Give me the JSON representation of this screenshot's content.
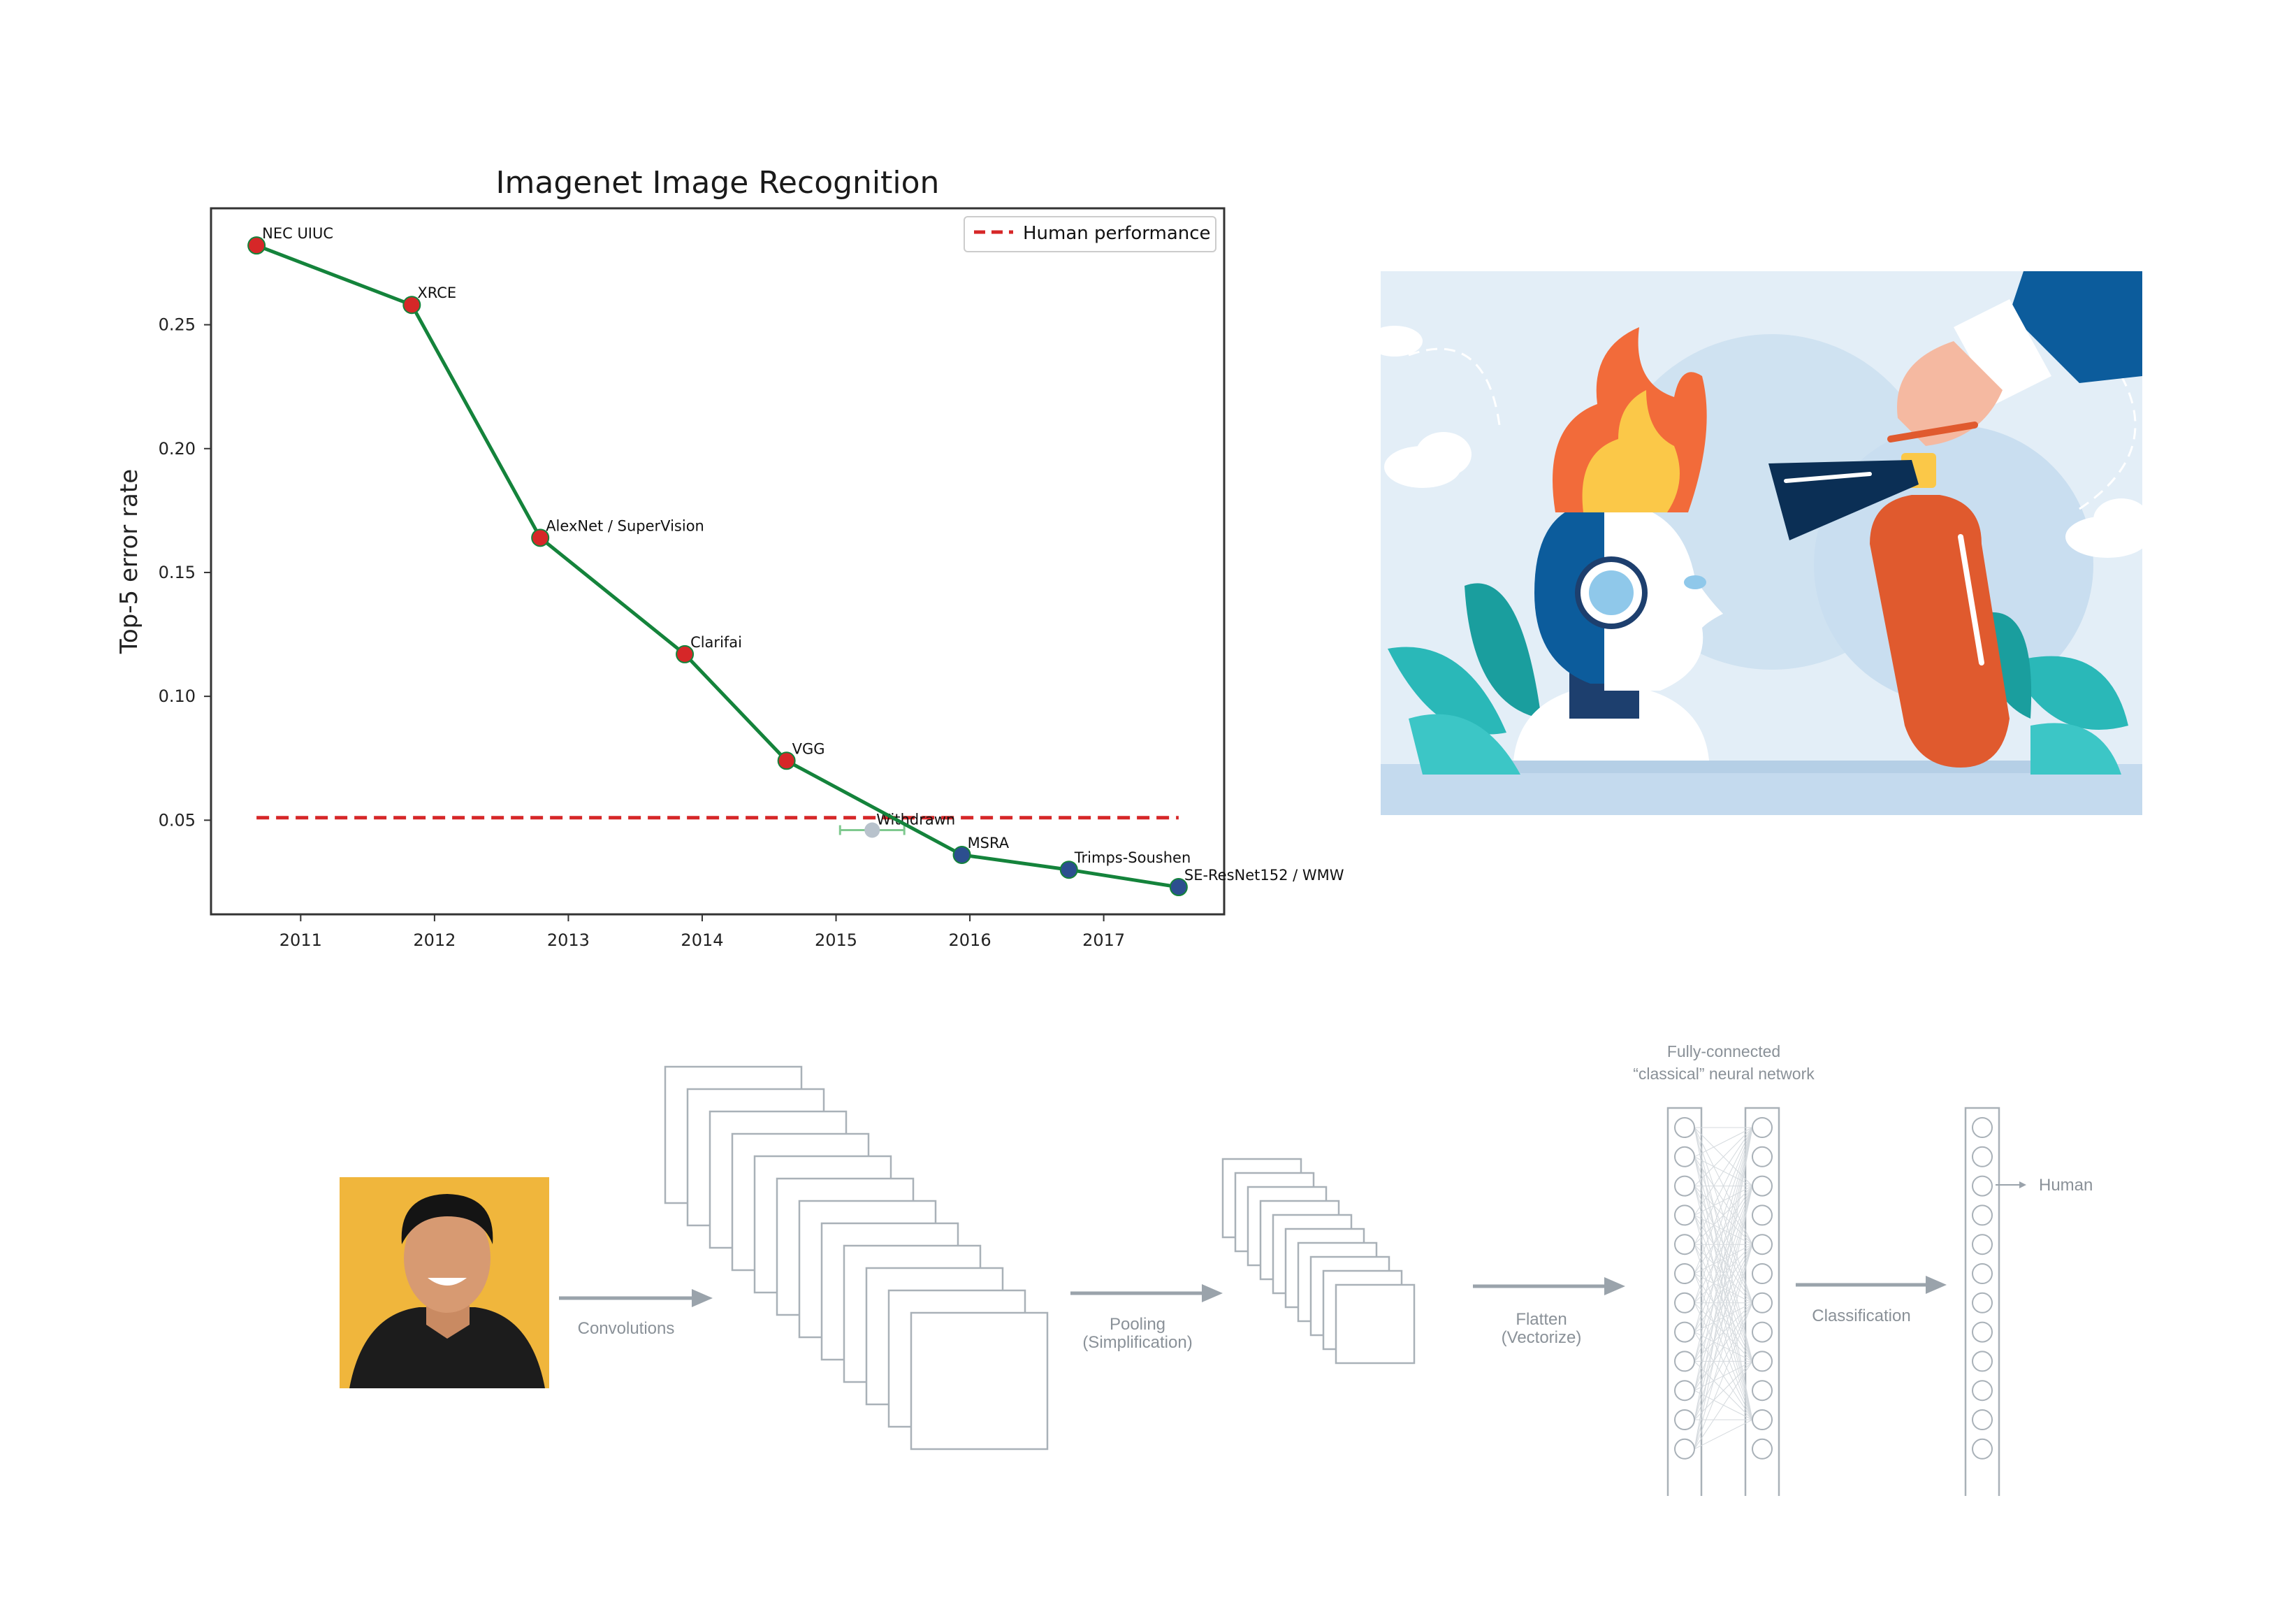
{
  "chart_data": {
    "type": "line",
    "title": "Imagenet Image Recognition",
    "ylabel": "Top-5 error rate",
    "xlabel": "",
    "xlim": [
      2010.33,
      2017.9
    ],
    "ylim": [
      0.012,
      0.297
    ],
    "xticks": [
      "2011",
      "2012",
      "2013",
      "2014",
      "2015",
      "2016",
      "2017"
    ],
    "yticks": [
      "0.05",
      "0.10",
      "0.15",
      "0.20",
      "0.25"
    ],
    "grid": false,
    "legend_position": "top-right",
    "series": [
      {
        "name": "",
        "points": [
          {
            "x": 2010.67,
            "y": 0.282,
            "label": "NEC UIUC",
            "color": "#d62728"
          },
          {
            "x": 2011.83,
            "y": 0.258,
            "label": "XRCE",
            "color": "#d62728"
          },
          {
            "x": 2012.79,
            "y": 0.164,
            "label": "AlexNet / SuperVision",
            "color": "#d62728"
          },
          {
            "x": 2013.87,
            "y": 0.117,
            "label": "Clarifai",
            "color": "#d62728"
          },
          {
            "x": 2014.63,
            "y": 0.074,
            "label": "VGG",
            "color": "#d62728"
          },
          {
            "x": 2015.94,
            "y": 0.036,
            "label": "MSRA",
            "color": "#2c4f8f"
          },
          {
            "x": 2016.74,
            "y": 0.03,
            "label": "Trimps-Soushen",
            "color": "#2c4f8f"
          },
          {
            "x": 2017.56,
            "y": 0.023,
            "label": "SE-ResNet152 / WMW",
            "color": "#2c4f8f"
          }
        ]
      }
    ],
    "withdrawn": {
      "x": 2015.27,
      "y": 0.046,
      "xerr": 0.24,
      "label": "Withdrawn"
    },
    "reference_line": {
      "name": "Human performance",
      "y": 0.051,
      "x_range": [
        2010.67,
        2017.56
      ],
      "style": "dashed",
      "color": "#d62728"
    },
    "line_color": "#14833b"
  },
  "cnn_diagram": {
    "labels": {
      "convolutions": "Convolutions",
      "pooling_1": "Pooling",
      "pooling_2": "(Simplification)",
      "flatten_1": "Flatten",
      "flatten_2": "(Vectorize)",
      "fc_1": "Fully-connected",
      "fc_2": "“classical” neural network",
      "classification": "Classification",
      "output": "Human"
    }
  },
  "colors": {
    "illustration_bg": "#e3eef7",
    "flame_orange": "#f26b3a",
    "extinguisher": "#e05a2e",
    "head_blue": "#0c5c9c",
    "leaf_teal": "#2ab8b8",
    "portrait_bg": "#f0b63c"
  }
}
